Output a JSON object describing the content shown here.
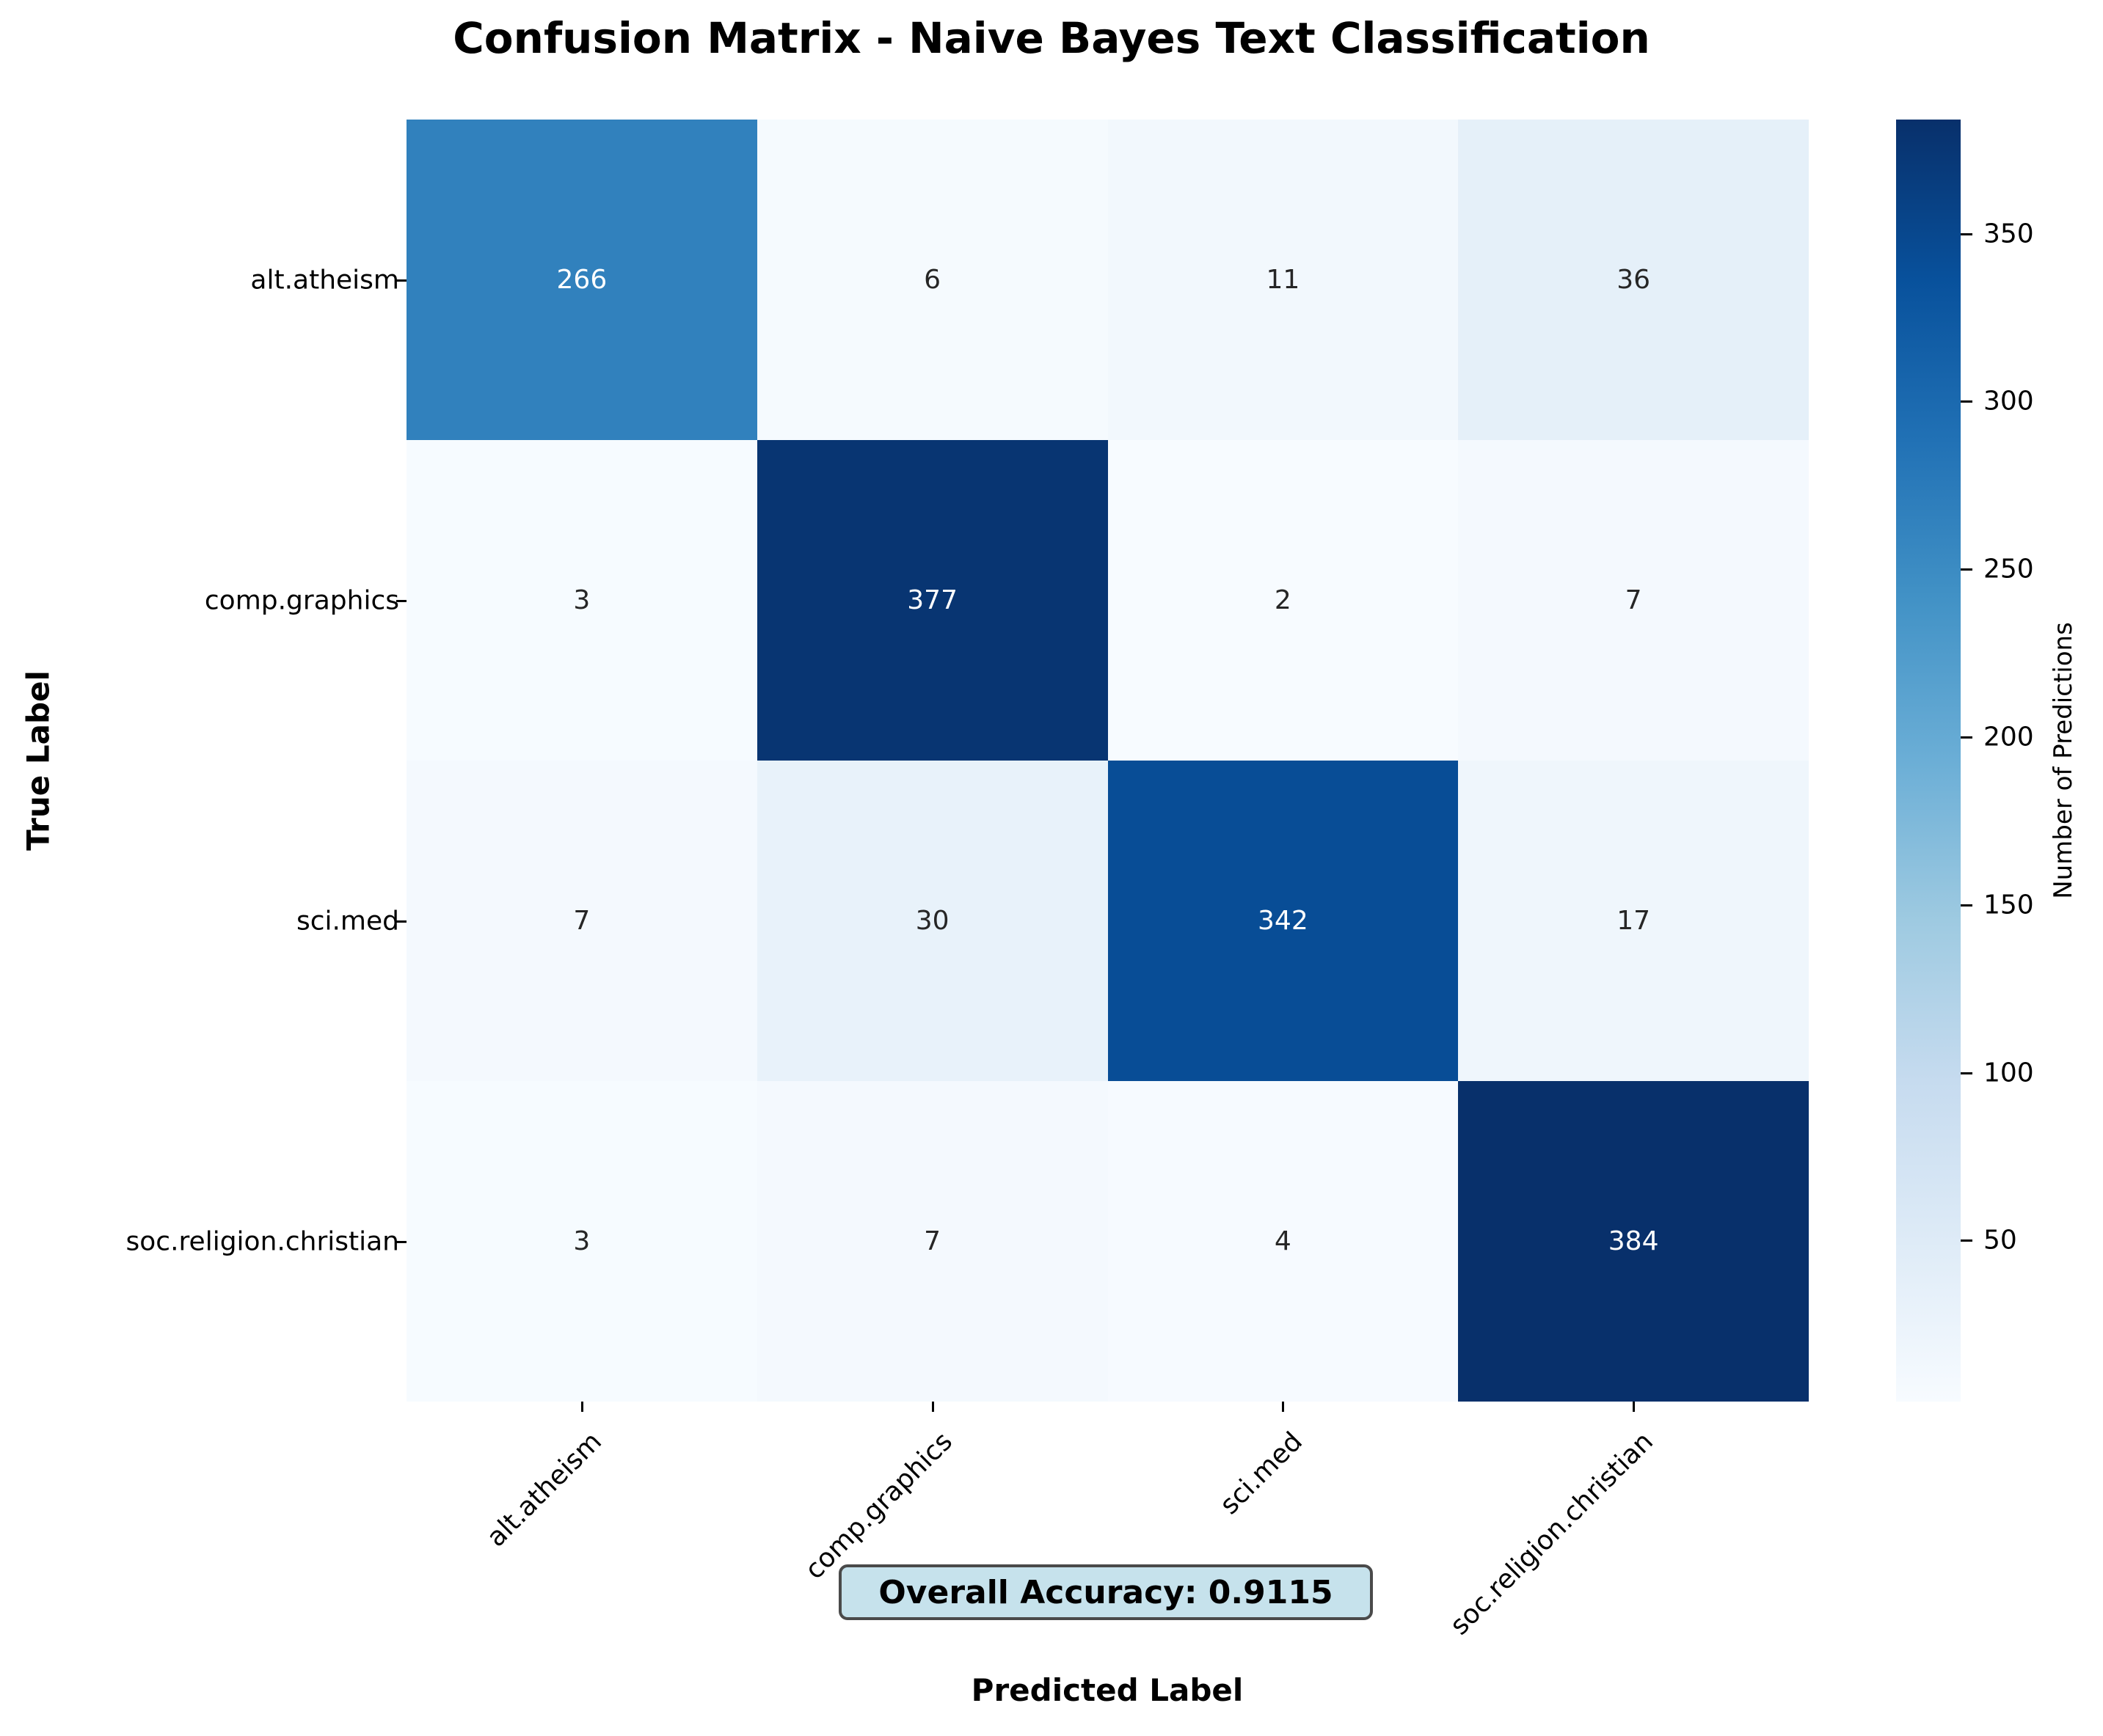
{
  "chart_data": {
    "type": "heatmap",
    "title": "Confusion Matrix - Naive Bayes Text Classification",
    "xlabel": "Predicted Label",
    "ylabel": "True Label",
    "x_categories": [
      "alt.atheism",
      "comp.graphics",
      "sci.med",
      "soc.religion.christian"
    ],
    "y_categories": [
      "alt.atheism",
      "comp.graphics",
      "sci.med",
      "soc.religion.christian"
    ],
    "matrix": [
      [
        266,
        6,
        11,
        36
      ],
      [
        3,
        377,
        2,
        7
      ],
      [
        7,
        30,
        342,
        17
      ],
      [
        3,
        7,
        4,
        384
      ]
    ],
    "colormap": "Blues",
    "vmin": 2,
    "vmax": 384,
    "colorbar": {
      "label": "Number of Predictions",
      "ticks": [
        50,
        100,
        150,
        200,
        250,
        300,
        350
      ]
    },
    "annotation": "Overall Accuracy: 0.9115",
    "accuracy": 0.9115,
    "grid": false
  },
  "colors": {
    "accuracy_box_bg": "#c6e2ec",
    "accuracy_box_border": "#4a4a4a"
  }
}
